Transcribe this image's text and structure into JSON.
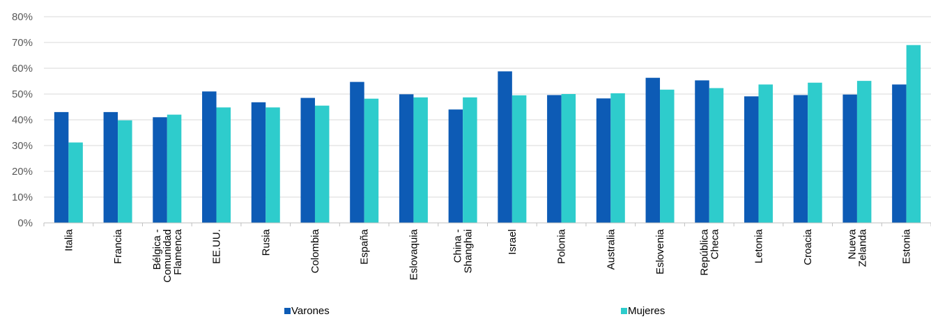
{
  "chart_data": {
    "type": "bar",
    "categories": [
      [
        "Italia"
      ],
      [
        "Francia"
      ],
      [
        "Bélgica -",
        "Comunidad",
        "Flamenca"
      ],
      [
        "EE.UU."
      ],
      [
        "Rusia"
      ],
      [
        "Colombia"
      ],
      [
        "España"
      ],
      [
        "Eslovaquia"
      ],
      [
        "China -",
        "Shanghai"
      ],
      [
        "Israel"
      ],
      [
        "Polonia"
      ],
      [
        "Australia"
      ],
      [
        "Eslovenia"
      ],
      [
        "República",
        "Checa"
      ],
      [
        "Letonia"
      ],
      [
        "Croacia"
      ],
      [
        "Nueva",
        "Zelanda"
      ],
      [
        "Estonia"
      ]
    ],
    "series": [
      {
        "name": "Varones",
        "color": "#0D5BB5",
        "values": [
          43,
          43,
          41,
          51,
          46.8,
          48.5,
          54.7,
          49.9,
          44,
          58.8,
          49.6,
          48.3,
          56.3,
          55.3,
          49.1,
          49.6,
          49.8,
          53.7
        ]
      },
      {
        "name": "Mujeres",
        "color": "#2ECCCC",
        "values": [
          31.2,
          39.8,
          42,
          44.8,
          44.8,
          45.5,
          48.2,
          48.7,
          48.7,
          49.5,
          50,
          50.3,
          51.7,
          52.3,
          53.7,
          54.4,
          55.1,
          69
        ]
      }
    ],
    "title": "",
    "xlabel": "",
    "ylabel": "",
    "ylim": [
      0,
      80
    ],
    "yticks": [
      "0%",
      "10%",
      "20%",
      "30%",
      "40%",
      "50%",
      "60%",
      "70%",
      "80%"
    ],
    "grid": true,
    "legend_position": "bottom"
  }
}
